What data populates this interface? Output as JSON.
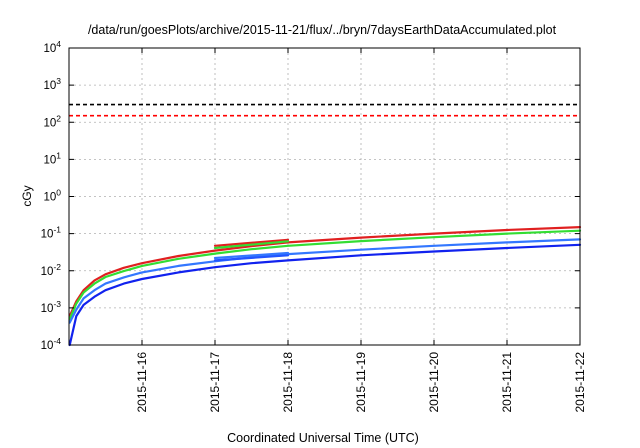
{
  "chart_data": {
    "type": "line",
    "title": "/data/run/goesPlots/archive/2015-11-21/flux/../bryn/7daysEarthDataAccumulated.plot",
    "xlabel": "Coordinated Universal Time (UTC)",
    "ylabel": "cGy",
    "yscale": "log",
    "xlim": [
      0,
      7
    ],
    "ylim_exp": [
      -4,
      4
    ],
    "y_ticks": [
      {
        "base": "10",
        "exp": "4",
        "e": 4
      },
      {
        "base": "10",
        "exp": "3",
        "e": 3
      },
      {
        "base": "10",
        "exp": "2",
        "e": 2
      },
      {
        "base": "10",
        "exp": "1",
        "e": 1
      },
      {
        "base": "10",
        "exp": "0",
        "e": 0
      },
      {
        "base": "10",
        "exp": "-1",
        "e": -1
      },
      {
        "base": "10",
        "exp": "-2",
        "e": -2
      },
      {
        "base": "10",
        "exp": "-3",
        "e": -3
      },
      {
        "base": "10",
        "exp": "-4",
        "e": -4
      }
    ],
    "x_ticks": [
      {
        "label": "2015-11-16",
        "x": 1
      },
      {
        "label": "2015-11-17",
        "x": 2
      },
      {
        "label": "2015-11-18",
        "x": 3
      },
      {
        "label": "2015-11-19",
        "x": 4
      },
      {
        "label": "2015-11-20",
        "x": 5
      },
      {
        "label": "2015-11-21",
        "x": 6
      },
      {
        "label": "2015-11-22",
        "x": 7
      }
    ],
    "thresholds": [
      {
        "name": "threshold-black",
        "value": 300,
        "color": "#000000"
      },
      {
        "name": "threshold-red",
        "value": 150,
        "color": "#ff0000"
      }
    ],
    "series": [
      {
        "name": "red",
        "color": "#e02020",
        "x": [
          0.01,
          0.1,
          0.2,
          0.35,
          0.5,
          0.75,
          1,
          1.5,
          2,
          2.5,
          3,
          4,
          5,
          6,
          7
        ],
        "y": [
          0.0006,
          0.0015,
          0.003,
          0.0055,
          0.008,
          0.012,
          0.016,
          0.025,
          0.035,
          0.046,
          0.058,
          0.078,
          0.1,
          0.125,
          0.15
        ]
      },
      {
        "name": "green",
        "color": "#33dd33",
        "x": [
          0.01,
          0.1,
          0.2,
          0.35,
          0.5,
          0.75,
          1,
          1.5,
          2,
          2.5,
          3,
          4,
          5,
          6,
          7
        ],
        "y": [
          0.0005,
          0.0013,
          0.0026,
          0.0045,
          0.0068,
          0.0098,
          0.0135,
          0.021,
          0.029,
          0.038,
          0.047,
          0.063,
          0.08,
          0.1,
          0.12
        ]
      },
      {
        "name": "light-blue",
        "color": "#3377ff",
        "x": [
          0.01,
          0.1,
          0.2,
          0.35,
          0.5,
          0.75,
          1,
          1.5,
          2,
          2.5,
          3,
          4,
          5,
          6,
          7
        ],
        "y": [
          0.0004,
          0.0009,
          0.0018,
          0.003,
          0.0045,
          0.0066,
          0.009,
          0.0135,
          0.018,
          0.023,
          0.028,
          0.037,
          0.047,
          0.058,
          0.07
        ]
      },
      {
        "name": "dark-blue",
        "color": "#1122ee",
        "x": [
          0.01,
          0.1,
          0.2,
          0.35,
          0.5,
          0.75,
          1,
          1.5,
          2,
          2.5,
          3,
          4,
          5,
          6,
          7
        ],
        "y": [
          0.0001,
          0.0006,
          0.0012,
          0.002,
          0.003,
          0.0045,
          0.006,
          0.009,
          0.0125,
          0.016,
          0.019,
          0.026,
          0.033,
          0.041,
          0.05
        ]
      },
      {
        "name": "red-overlap",
        "color": "#e02020",
        "x": [
          2,
          3
        ],
        "y": [
          0.047,
          0.068
        ]
      },
      {
        "name": "green-overlap",
        "color": "#33dd33",
        "x": [
          2,
          3
        ],
        "y": [
          0.041,
          0.062
        ]
      },
      {
        "name": "light-blue-overlap",
        "color": "#3377ff",
        "x": [
          2,
          3
        ],
        "y": [
          0.022,
          0.03
        ]
      },
      {
        "name": "mid-blue-overlap",
        "color": "#2255ff",
        "x": [
          2,
          3
        ],
        "y": [
          0.019,
          0.026
        ]
      }
    ]
  }
}
